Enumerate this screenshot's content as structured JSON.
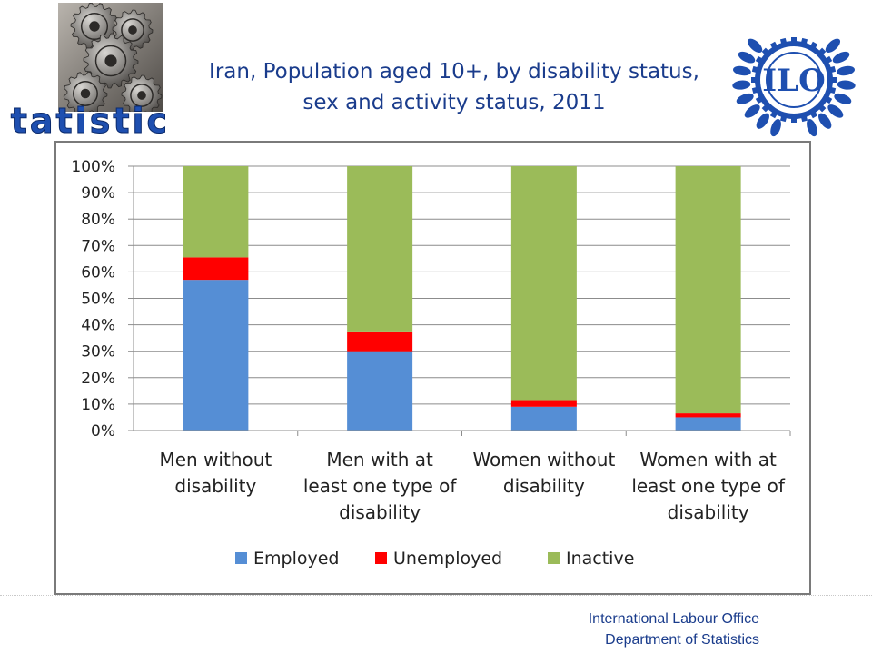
{
  "header": {
    "title_line1": "Iran, Population aged 10+, by disability status,",
    "title_line2": "sex and activity status, 2011",
    "statistics_word": "Statistics",
    "ilo_logo_text": "ILO"
  },
  "footer": {
    "line1": "International Labour Office",
    "line2": "Department of Statistics"
  },
  "chart_data": {
    "type": "bar",
    "stacked": true,
    "percent": true,
    "categories": [
      [
        "Men without",
        "disability"
      ],
      [
        "Men with at",
        "least one type of",
        "disability"
      ],
      [
        "Women without",
        "disability"
      ],
      [
        "Women with at",
        "least one type of",
        "disability"
      ]
    ],
    "series": [
      {
        "name": "Employed",
        "color": "#558ed5",
        "values": [
          57,
          30,
          9,
          5
        ]
      },
      {
        "name": "Unemployed",
        "color": "#ff0000",
        "values": [
          8.5,
          7.5,
          2.5,
          1.5
        ]
      },
      {
        "name": "Inactive",
        "color": "#9bbb59",
        "values": [
          34.5,
          62.5,
          88.5,
          93.5
        ]
      }
    ],
    "ylim": [
      0,
      100
    ],
    "yticks": [
      "0%",
      "10%",
      "20%",
      "30%",
      "40%",
      "50%",
      "60%",
      "70%",
      "80%",
      "90%",
      "100%"
    ],
    "grid": true,
    "legend": "bottom"
  }
}
